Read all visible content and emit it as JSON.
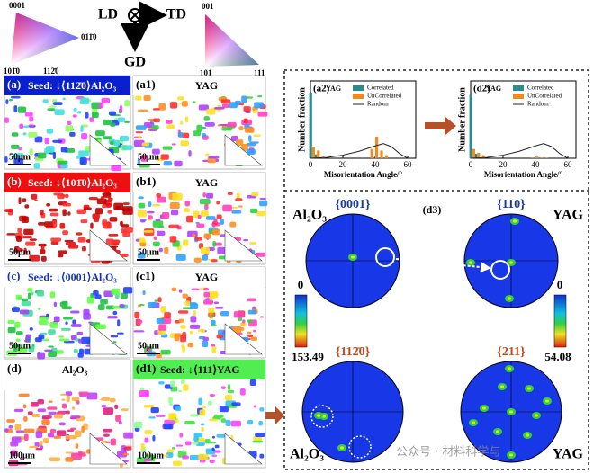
{
  "keys": {
    "hex": [
      "0001",
      "011̄0",
      "101̄0",
      "112̄0"
    ],
    "cubic": [
      "001",
      "101",
      "111"
    ],
    "axes": [
      "LD",
      "TD",
      "GD"
    ]
  },
  "panels": [
    {
      "label": "(a)",
      "title": "Seed: ↓⟨112̄0⟩Al₂O₃",
      "scale": "50μm"
    },
    {
      "label": "(a1)",
      "title": "YAG",
      "scale": "50μm"
    },
    {
      "label": "(b)",
      "title": "Seed: ↓⟨101̄0⟩Al₂O₃",
      "scale": "50μm"
    },
    {
      "label": "(b1)",
      "title": "YAG",
      "scale": "50μm"
    },
    {
      "label": "(c)",
      "title": "Seed: ↓⟨0001⟩Al₂O₃",
      "scale": "50μm"
    },
    {
      "label": "(c1)",
      "title": "YAG",
      "scale": "50μm"
    },
    {
      "label": "(d)",
      "title": "Al₂O₃",
      "scale": "100μm"
    },
    {
      "label": "(d1)",
      "title": "Seed: ↓⟨111⟩YAG",
      "scale": "100μm"
    }
  ],
  "chart_data": [
    {
      "type": "bar",
      "label": "(a2)",
      "legend_title": "YAG",
      "legend": "upper right",
      "x_label": "Misorientation Angle/°",
      "y_label": "Number fraction",
      "xlim": [
        0,
        65
      ],
      "ylim": [
        0,
        1
      ],
      "xticks": [
        0,
        20,
        40,
        60
      ],
      "x": [
        1,
        4,
        7,
        37,
        40,
        43,
        46
      ],
      "series": [
        {
          "name": "Correlated",
          "color": "#2a8c8c",
          "values": [
            0.85,
            0.05,
            0,
            0,
            0,
            0,
            0
          ]
        },
        {
          "name": "UnCorrelated",
          "color": "#f08a24",
          "values": [
            0.15,
            0.1,
            0.02,
            0.12,
            0.28,
            0.1,
            0.04
          ]
        },
        {
          "name": "Random",
          "color": "#222222",
          "type": "line",
          "x": [
            0,
            10,
            20,
            30,
            40,
            45,
            50,
            55,
            60
          ],
          "values": [
            0,
            0.01,
            0.04,
            0.09,
            0.16,
            0.19,
            0.15,
            0.06,
            0
          ]
        }
      ]
    },
    {
      "type": "bar",
      "label": "(d2)",
      "legend_title": "YAG",
      "legend": "upper right",
      "x_label": "Misorientation Angle/°",
      "y_label": "Number fraction",
      "xlim": [
        0,
        65
      ],
      "ylim": [
        0,
        1
      ],
      "xticks": [
        0,
        20,
        40,
        60
      ],
      "x": [
        1,
        4,
        7,
        37,
        40,
        43,
        46
      ],
      "series": [
        {
          "name": "Correlated",
          "color": "#2a8c8c",
          "values": [
            0.82,
            0.06,
            0.01,
            0,
            0,
            0,
            0
          ]
        },
        {
          "name": "UnCorrelated",
          "color": "#f08a24",
          "values": [
            0.12,
            0.07,
            0.04,
            0.01,
            0.02,
            0.01,
            0.01
          ]
        },
        {
          "name": "Random",
          "color": "#222222",
          "type": "line",
          "x": [
            0,
            10,
            20,
            30,
            40,
            45,
            50,
            55,
            60
          ],
          "values": [
            0,
            0.01,
            0.04,
            0.09,
            0.16,
            0.19,
            0.15,
            0.06,
            0
          ]
        }
      ]
    }
  ],
  "pole_figures": {
    "label": "(d3)",
    "phases": [
      "Al₂O₃",
      "YAG"
    ],
    "plots": [
      {
        "title": "{0001}"
      },
      {
        "title": "{110}"
      },
      {
        "title": "{112̄0}"
      },
      {
        "title": "{211}"
      }
    ],
    "colorbars": [
      {
        "min": 0,
        "max": 153.49
      },
      {
        "min": 0,
        "max": 54.08
      }
    ]
  },
  "watermark": "公众号 · 材料科学与"
}
